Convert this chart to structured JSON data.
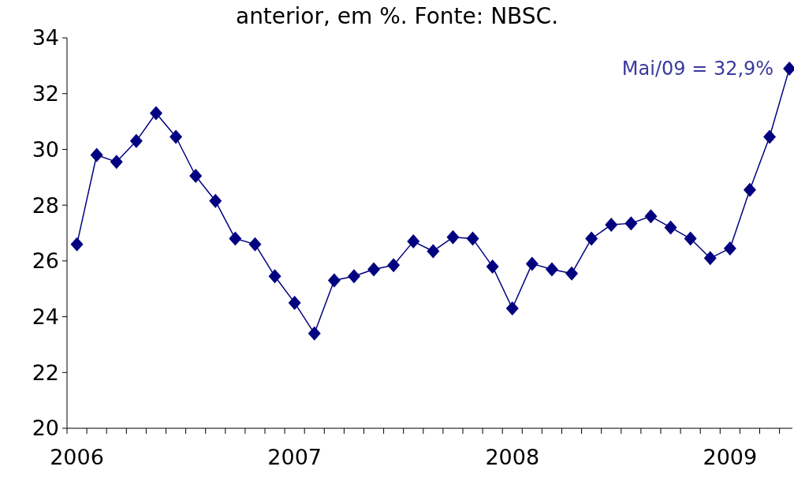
{
  "chart_data": {
    "type": "line",
    "title": "anterior, em %. Fonte: NBSC.",
    "categories": [
      "2006",
      null,
      null,
      null,
      null,
      null,
      null,
      null,
      null,
      null,
      null,
      "2007",
      null,
      null,
      null,
      null,
      null,
      null,
      null,
      null,
      null,
      null,
      "2008",
      null,
      null,
      null,
      null,
      null,
      null,
      null,
      null,
      null,
      null,
      "2009",
      null,
      null,
      null
    ],
    "series": [
      {
        "color": "#000080",
        "values": [
          26.6,
          29.8,
          29.55,
          30.3,
          31.3,
          30.45,
          29.05,
          28.15,
          26.8,
          26.6,
          25.45,
          24.5,
          23.4,
          25.3,
          25.45,
          25.7,
          25.85,
          26.7,
          26.35,
          26.85,
          26.8,
          25.8,
          24.3,
          25.9,
          25.7,
          25.55,
          26.8,
          27.3,
          27.35,
          27.6,
          27.2,
          26.8,
          26.1,
          26.45,
          28.55,
          30.45,
          32.9
        ]
      }
    ],
    "ylim": [
      20,
      34
    ],
    "yticks": [
      20,
      22,
      24,
      26,
      28,
      30,
      32,
      34
    ],
    "annotations": [
      "Mai/09 = 32,9%"
    ],
    "marker": "diamond",
    "line_style": "solid"
  }
}
